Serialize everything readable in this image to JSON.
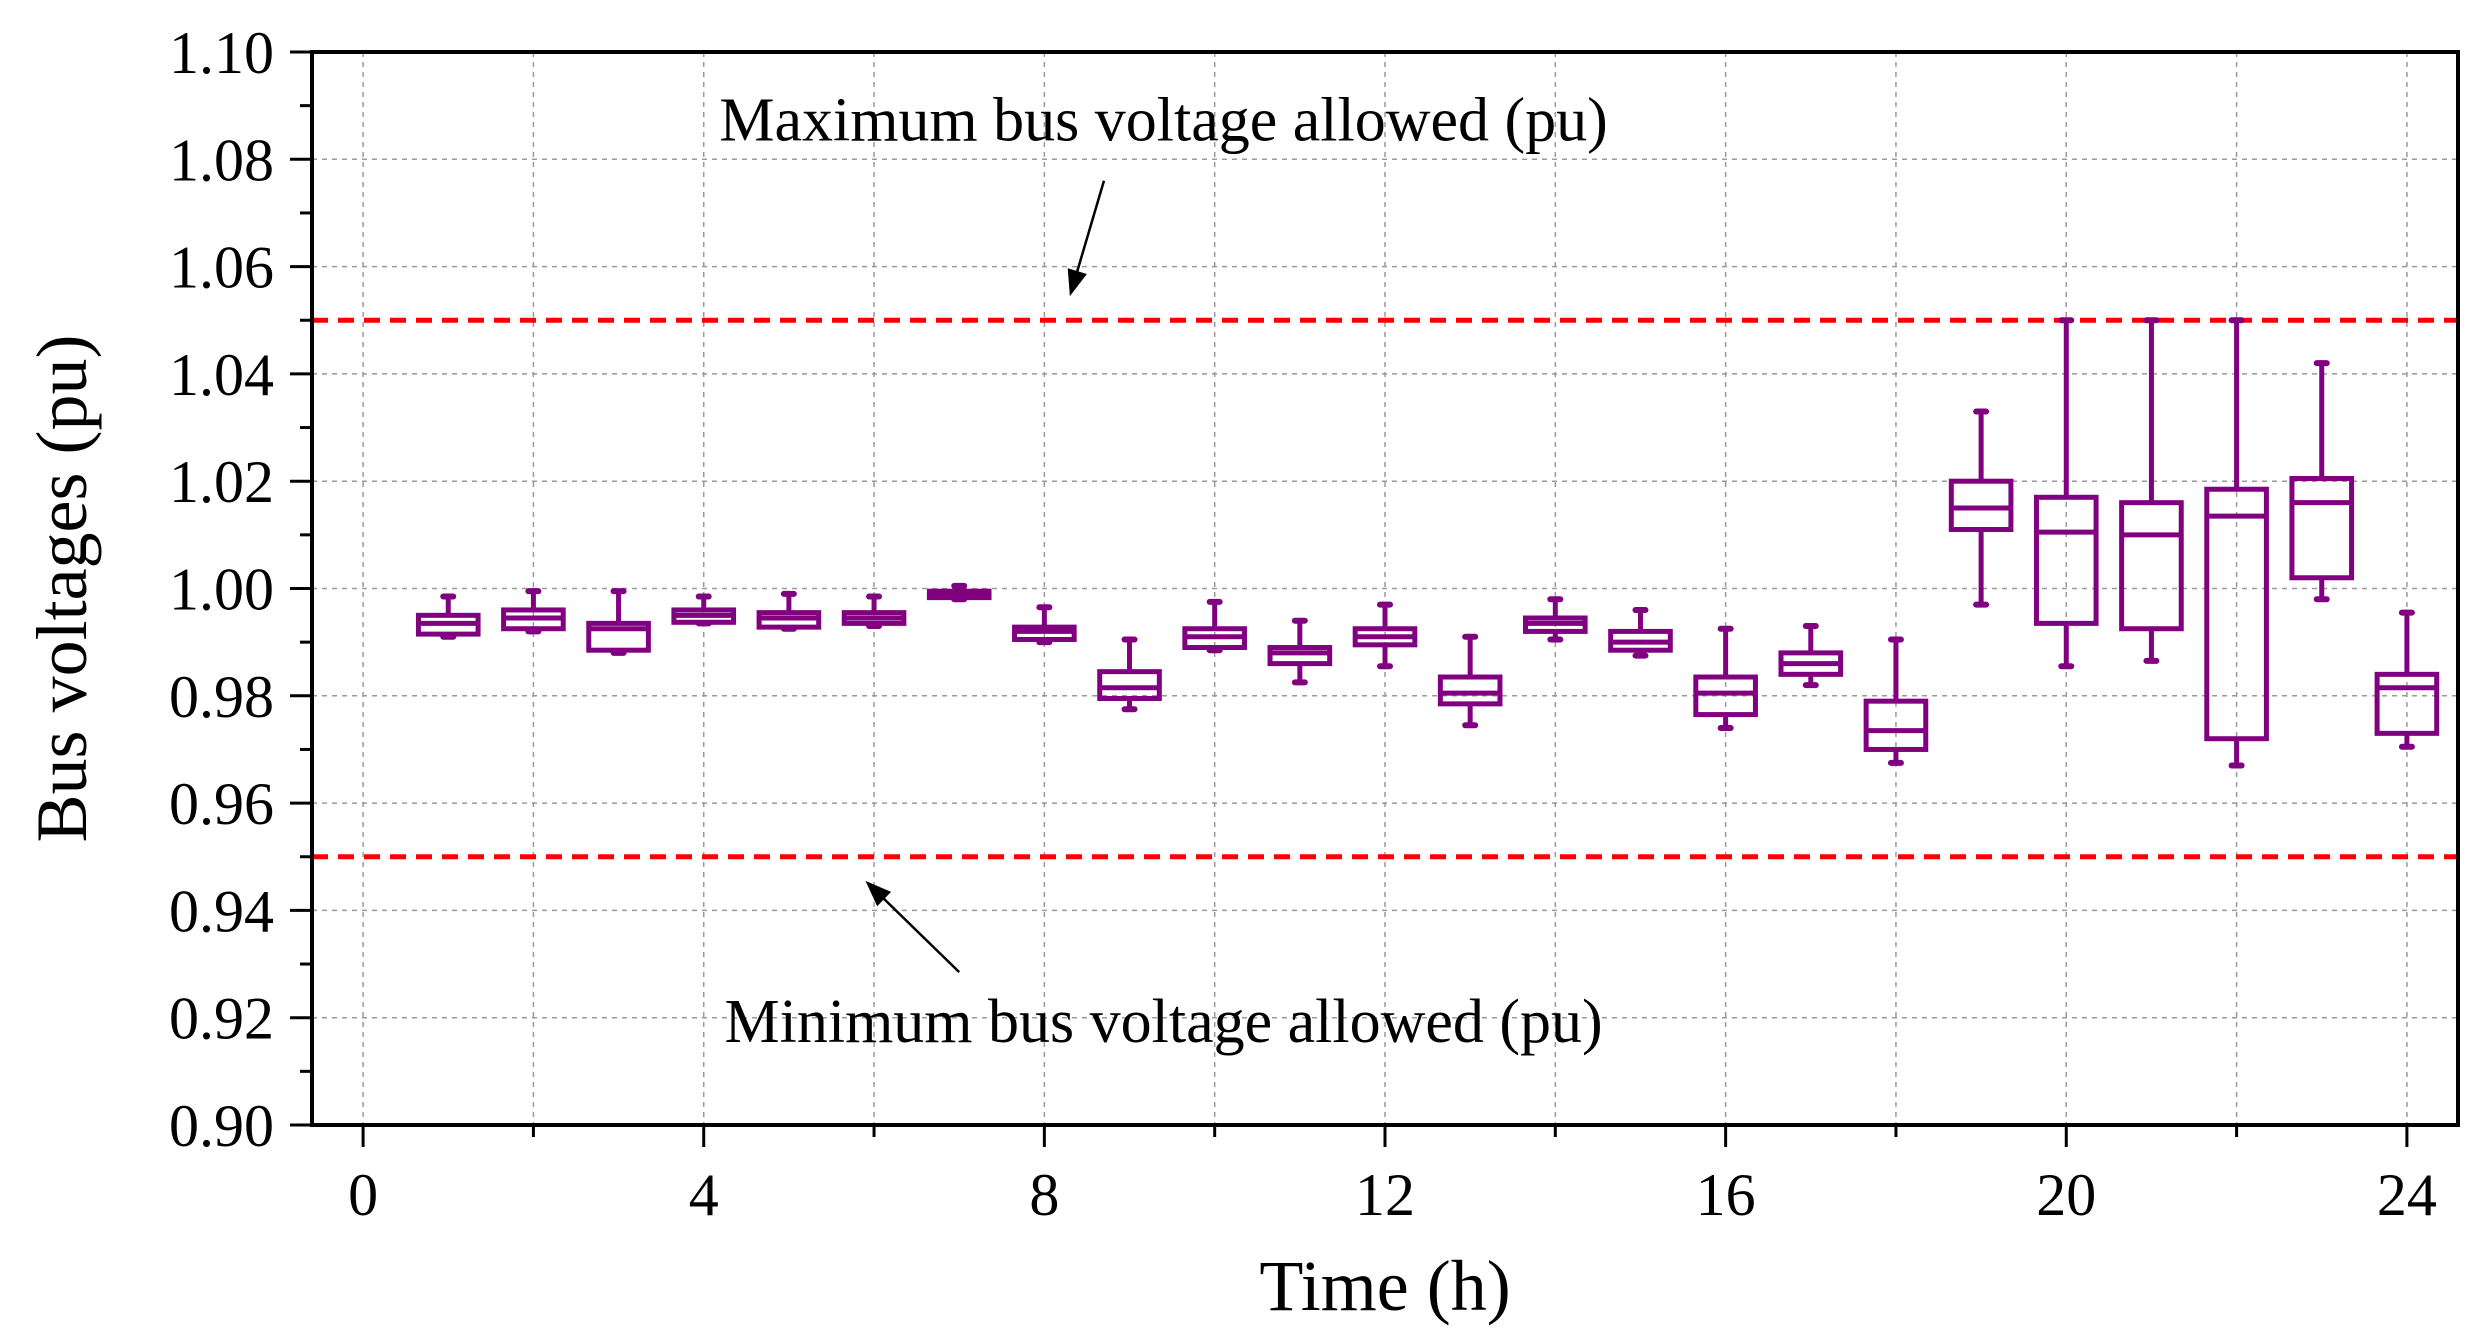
{
  "chart_data": {
    "type": "box",
    "title": "",
    "xlabel": "Time (h)",
    "ylabel": "Bus voltages (pu)",
    "xlim": [
      -0.6,
      24.6
    ],
    "ylim": [
      0.9,
      1.1
    ],
    "xticks": [
      0,
      4,
      8,
      12,
      16,
      20,
      24
    ],
    "xtick_labels": [
      "0",
      "4",
      "8",
      "12",
      "16",
      "20",
      "24"
    ],
    "yticks": [
      0.9,
      0.92,
      0.94,
      0.96,
      0.98,
      1.0,
      1.02,
      1.04,
      1.06,
      1.08,
      1.1
    ],
    "ytick_labels": [
      "0.90",
      "0.92",
      "0.94",
      "0.96",
      "0.98",
      "1.00",
      "1.02",
      "1.04",
      "1.06",
      "1.08",
      "1.10"
    ],
    "grid": true,
    "box_color": "#800080",
    "limit_color": "#ff0000",
    "limits": [
      {
        "name": "max",
        "value": 1.05
      },
      {
        "name": "min",
        "value": 0.95
      }
    ],
    "annotations": [
      {
        "name": "max",
        "text": "Maximum bus voltage allowed (pu)",
        "anchor_x": 9.4,
        "anchor_y": 1.0835,
        "arrow_from": [
          8.7,
          1.076
        ],
        "arrow_to": [
          8.3,
          1.0545
        ]
      },
      {
        "name": "min",
        "text": "Minimum bus voltage allowed (pu)",
        "anchor_x": 9.4,
        "anchor_y": 0.9155,
        "arrow_from": [
          7.0,
          0.9285
        ],
        "arrow_to": [
          5.9,
          0.9455
        ]
      }
    ],
    "boxes": [
      {
        "x": 1,
        "whislo": 0.991,
        "q1": 0.9915,
        "med": 0.9935,
        "q3": 0.995,
        "whishi": 0.9985
      },
      {
        "x": 2,
        "whislo": 0.992,
        "q1": 0.9925,
        "med": 0.9945,
        "q3": 0.996,
        "whishi": 0.9995
      },
      {
        "x": 3,
        "whislo": 0.988,
        "q1": 0.9885,
        "med": 0.9925,
        "q3": 0.9935,
        "whishi": 0.9995
      },
      {
        "x": 4,
        "whislo": 0.9935,
        "q1": 0.9937,
        "med": 0.995,
        "q3": 0.996,
        "whishi": 0.9985
      },
      {
        "x": 5,
        "whislo": 0.9925,
        "q1": 0.9928,
        "med": 0.9945,
        "q3": 0.9955,
        "whishi": 0.999
      },
      {
        "x": 6,
        "whislo": 0.993,
        "q1": 0.9935,
        "med": 0.9945,
        "q3": 0.9955,
        "whishi": 0.9985
      },
      {
        "x": 7,
        "whislo": 0.998,
        "q1": 0.9983,
        "med": 0.999,
        "q3": 0.9995,
        "whishi": 1.0005
      },
      {
        "x": 8,
        "whislo": 0.99,
        "q1": 0.9905,
        "med": 0.992,
        "q3": 0.9928,
        "whishi": 0.9965
      },
      {
        "x": 9,
        "whislo": 0.9775,
        "q1": 0.9795,
        "med": 0.9815,
        "q3": 0.9845,
        "whishi": 0.9905
      },
      {
        "x": 10,
        "whislo": 0.9885,
        "q1": 0.989,
        "med": 0.991,
        "q3": 0.9925,
        "whishi": 0.9975
      },
      {
        "x": 11,
        "whislo": 0.9825,
        "q1": 0.986,
        "med": 0.988,
        "q3": 0.989,
        "whishi": 0.994
      },
      {
        "x": 12,
        "whislo": 0.9855,
        "q1": 0.9895,
        "med": 0.991,
        "q3": 0.9925,
        "whishi": 0.997
      },
      {
        "x": 13,
        "whislo": 0.9745,
        "q1": 0.9785,
        "med": 0.9805,
        "q3": 0.9835,
        "whishi": 0.991
      },
      {
        "x": 14,
        "whislo": 0.9905,
        "q1": 0.992,
        "med": 0.9935,
        "q3": 0.9945,
        "whishi": 0.998
      },
      {
        "x": 15,
        "whislo": 0.9875,
        "q1": 0.9885,
        "med": 0.99,
        "q3": 0.992,
        "whishi": 0.996
      },
      {
        "x": 16,
        "whislo": 0.974,
        "q1": 0.9765,
        "med": 0.9805,
        "q3": 0.9835,
        "whishi": 0.9925
      },
      {
        "x": 17,
        "whislo": 0.982,
        "q1": 0.984,
        "med": 0.986,
        "q3": 0.988,
        "whishi": 0.993
      },
      {
        "x": 18,
        "whislo": 0.9675,
        "q1": 0.97,
        "med": 0.9735,
        "q3": 0.979,
        "whishi": 0.9905
      },
      {
        "x": 19,
        "whislo": 0.997,
        "q1": 1.011,
        "med": 1.015,
        "q3": 1.02,
        "whishi": 1.033
      },
      {
        "x": 20,
        "whislo": 0.9855,
        "q1": 0.9935,
        "med": 1.0105,
        "q3": 1.017,
        "whishi": 1.05
      },
      {
        "x": 21,
        "whislo": 0.9865,
        "q1": 0.9925,
        "med": 1.01,
        "q3": 1.016,
        "whishi": 1.05
      },
      {
        "x": 22,
        "whislo": 0.967,
        "q1": 0.972,
        "med": 1.0135,
        "q3": 1.0185,
        "whishi": 1.05
      },
      {
        "x": 23,
        "whislo": 0.998,
        "q1": 1.002,
        "med": 1.016,
        "q3": 1.0205,
        "whishi": 1.042
      },
      {
        "x": 24,
        "whislo": 0.9705,
        "q1": 0.973,
        "med": 0.9815,
        "q3": 0.984,
        "whishi": 0.9955
      }
    ]
  }
}
